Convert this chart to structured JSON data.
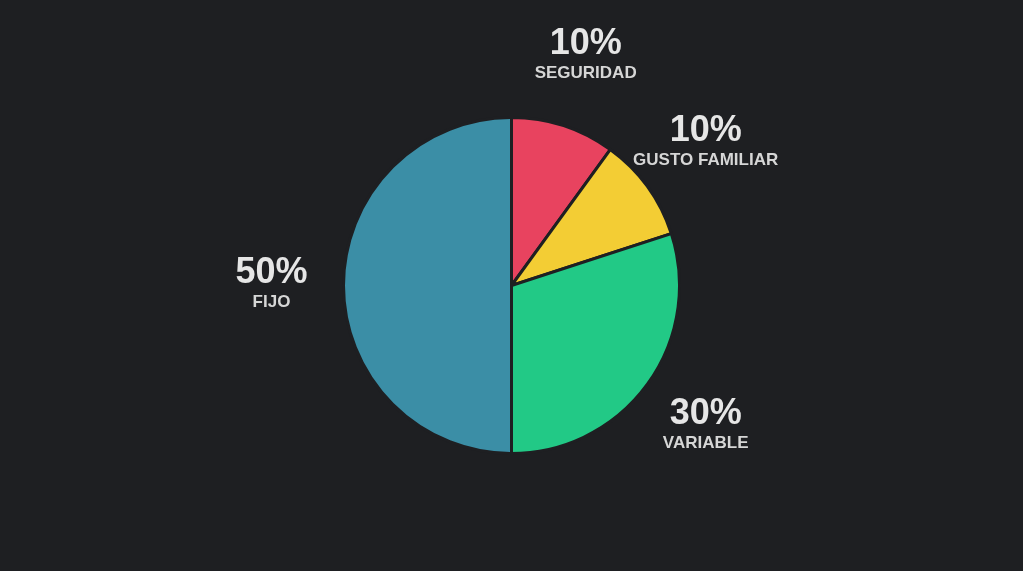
{
  "chart_data": {
    "type": "pie",
    "categories": [
      "SEGURIDAD",
      "GUSTO FAMILIAR",
      "VARIABLE",
      "FIJO"
    ],
    "values": [
      10,
      10,
      30,
      50
    ],
    "colors": [
      "#e8435f",
      "#f3cd34",
      "#22c986",
      "#3b8ea6"
    ],
    "value_labels": [
      "10%",
      "10%",
      "30%",
      "50%"
    ]
  }
}
